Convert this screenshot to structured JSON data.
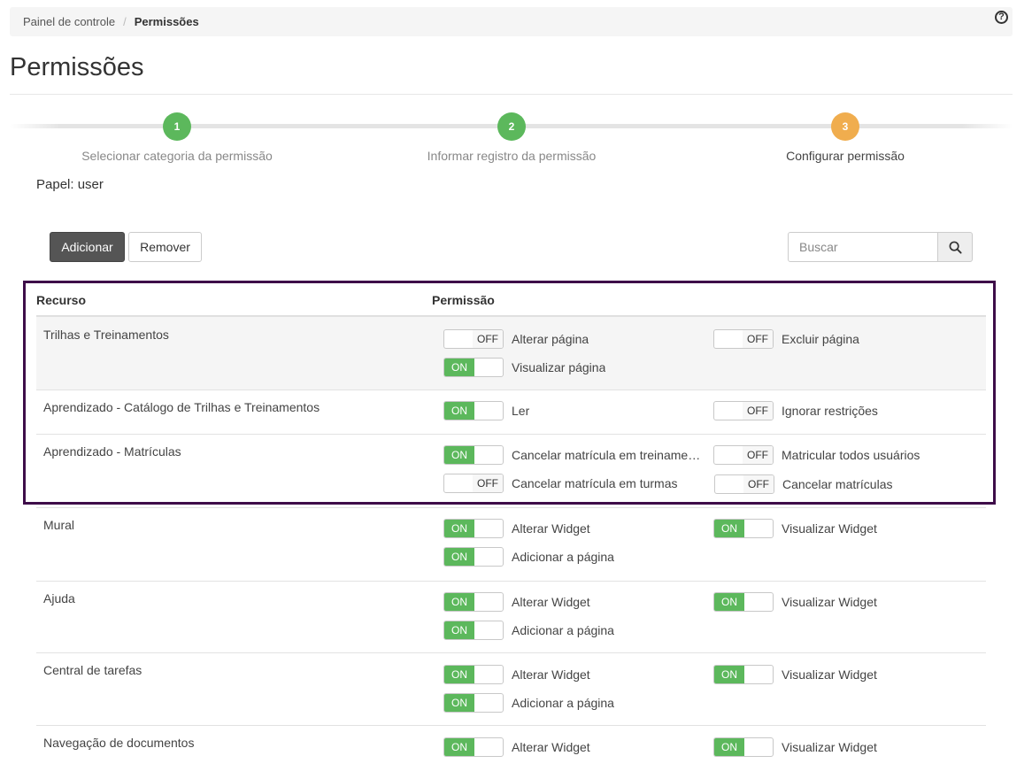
{
  "breadcrumb": {
    "home": "Painel de controle",
    "separator": "/",
    "current": "Permissões"
  },
  "help_icon": "question-circle-icon",
  "page": {
    "title": "Permissões"
  },
  "wizard": {
    "steps": [
      {
        "number": "1",
        "label": "Selecionar categoria da permissão",
        "color": "#5cb85c"
      },
      {
        "number": "2",
        "label": "Informar registro da permissão",
        "color": "#5cb85c"
      },
      {
        "number": "3",
        "label": "Configurar permissão",
        "color": "#f0ad4e"
      }
    ]
  },
  "role": {
    "label": "Papel: user"
  },
  "toolbar": {
    "add_label": "Adicionar",
    "remove_label": "Remover"
  },
  "search": {
    "placeholder": "Buscar",
    "icon": "search-icon"
  },
  "table": {
    "headers": {
      "resource": "Recurso",
      "permission": "Permissão"
    },
    "toggle_text": {
      "on": "ON",
      "off": "OFF"
    },
    "rows": [
      {
        "resource": "Trilhas e Treinamentos",
        "permissions": [
          {
            "label": "Alterar página",
            "state": "OFF"
          },
          {
            "label": "Excluir página",
            "state": "OFF"
          },
          {
            "label": "Visualizar página",
            "state": "ON"
          }
        ]
      },
      {
        "resource": "Aprendizado - Catálogo de Trilhas e Treinamentos",
        "permissions": [
          {
            "label": "Ler",
            "state": "ON"
          },
          {
            "label": "Ignorar restrições",
            "state": "OFF"
          }
        ]
      },
      {
        "resource": "Aprendizado - Matrículas",
        "permissions": [
          {
            "label": "Cancelar matrícula em treinamentos",
            "state": "ON"
          },
          {
            "label": "Matricular todos usuários",
            "state": "OFF"
          },
          {
            "label": "Cancelar matrícula em turmas",
            "state": "OFF"
          },
          {
            "label": "Cancelar matrículas",
            "state": "OFF"
          }
        ]
      },
      {
        "resource": "Mural",
        "permissions": [
          {
            "label": "Alterar Widget",
            "state": "ON"
          },
          {
            "label": "Visualizar Widget",
            "state": "ON"
          },
          {
            "label": "Adicionar a página",
            "state": "ON"
          }
        ]
      },
      {
        "resource": "Ajuda",
        "permissions": [
          {
            "label": "Alterar Widget",
            "state": "ON"
          },
          {
            "label": "Visualizar Widget",
            "state": "ON"
          },
          {
            "label": "Adicionar a página",
            "state": "ON"
          }
        ]
      },
      {
        "resource": "Central de tarefas",
        "permissions": [
          {
            "label": "Alterar Widget",
            "state": "ON"
          },
          {
            "label": "Visualizar Widget",
            "state": "ON"
          },
          {
            "label": "Adicionar a página",
            "state": "ON"
          }
        ]
      },
      {
        "resource": "Navegação de documentos",
        "permissions": [
          {
            "label": "Alterar Widget",
            "state": "ON"
          },
          {
            "label": "Visualizar Widget",
            "state": "ON"
          }
        ]
      }
    ]
  },
  "highlight_color": "#3e0d49"
}
